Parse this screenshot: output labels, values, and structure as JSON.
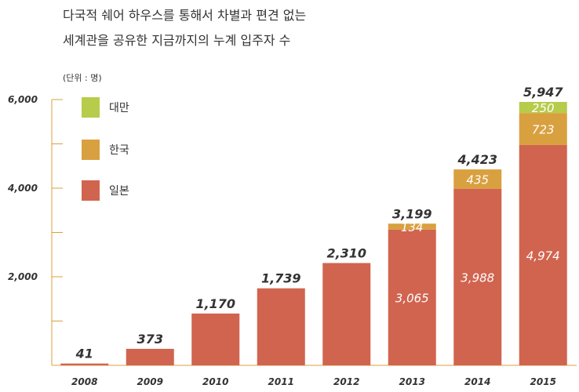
{
  "title_lines": [
    "다국적 쉐어 하우스를 통해서 차별과 편견 없는",
    "세계관을 공유한 지금까지의 누계 입주자 수"
  ],
  "unit_label": "(단위 : 명)",
  "colors": {
    "japan": "#d1644f",
    "korea": "#d9a040",
    "taiwan": "#b6cc4a",
    "highlight_total": "#a8141b",
    "axis": "#d9a040",
    "text": "#333333"
  },
  "chart_data": {
    "type": "bar",
    "stacked": true,
    "title": "다국적 쉐어 하우스를 통해서 차별과 편견 없는 세계관을 공유한 지금까지의 누계 입주자 수",
    "unit": "(단위 : 명)",
    "categories": [
      "2008",
      "2009",
      "2010",
      "2011",
      "2012",
      "2013",
      "2014",
      "2015"
    ],
    "series": [
      {
        "name": "일본",
        "values": [
          41,
          373,
          1170,
          1739,
          2310,
          3065,
          3988,
          4974
        ],
        "labels": [
          "",
          "",
          "",
          "",
          "",
          "3,065",
          "3,988",
          "4,974"
        ]
      },
      {
        "name": "한국",
        "values": [
          0,
          0,
          0,
          0,
          0,
          134,
          435,
          723
        ],
        "labels": [
          "",
          "",
          "",
          "",
          "",
          "134",
          "435",
          "723"
        ]
      },
      {
        "name": "대만",
        "values": [
          0,
          0,
          0,
          0,
          0,
          0,
          0,
          250
        ],
        "labels": [
          "",
          "",
          "",
          "",
          "",
          "",
          "",
          "250"
        ]
      }
    ],
    "totals": [
      41,
      373,
      1170,
      1739,
      2310,
      3199,
      4423,
      5947
    ],
    "total_labels": [
      "41",
      "373",
      "1,170",
      "1,739",
      "2,310",
      "3,199",
      "4,423",
      "5,947"
    ],
    "highlighted_totals": [
      "2008",
      "2015"
    ],
    "yticks": [
      2000,
      4000,
      6000
    ],
    "ytick_labels": [
      "2,000",
      "4,000",
      "6,000"
    ],
    "ylim": [
      0,
      6000
    ],
    "legend": [
      "대만",
      "한국",
      "일본"
    ],
    "legend_position": "top-left",
    "grid": false
  }
}
